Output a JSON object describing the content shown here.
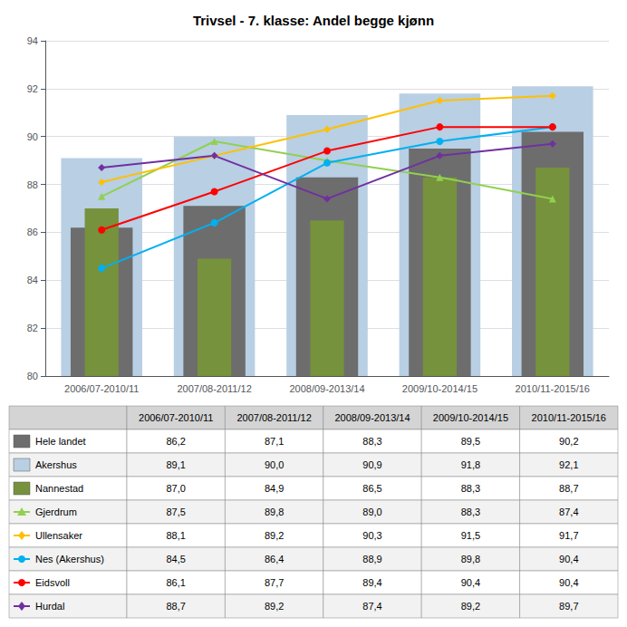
{
  "chart_data": {
    "type": "bar",
    "title": "Trivsel - 7. klasse: Andel begge kjønn",
    "categories": [
      "2006/07-2010/11",
      "2007/08-2011/12",
      "2008/09-2013/14",
      "2009/10-2014/15",
      "2010/11-2015/16"
    ],
    "ylim": [
      80,
      94
    ],
    "yticks": [
      80,
      82,
      84,
      86,
      88,
      90,
      92,
      94
    ],
    "grid": true,
    "series": [
      {
        "name": "Hele landet",
        "type": "bar",
        "color": "#6d6d6d",
        "values": [
          86.2,
          87.1,
          88.3,
          89.5,
          90.2
        ],
        "value_labels": [
          "86,2",
          "87,1",
          "88,3",
          "89,5",
          "90,2"
        ]
      },
      {
        "name": "Akershus",
        "type": "bar",
        "color": "#b8cfe4",
        "values": [
          89.1,
          90.0,
          90.9,
          91.8,
          92.1
        ],
        "value_labels": [
          "89,1",
          "90,0",
          "90,9",
          "91,8",
          "92,1"
        ]
      },
      {
        "name": "Nannestad",
        "type": "bar",
        "color": "#76923c",
        "values": [
          87.0,
          84.9,
          86.5,
          88.3,
          88.7
        ],
        "value_labels": [
          "87,0",
          "84,9",
          "86,5",
          "88,3",
          "88,7"
        ]
      },
      {
        "name": "Gjerdrum",
        "type": "line",
        "color": "#92d050",
        "marker": "triangle",
        "values": [
          87.5,
          89.8,
          89.0,
          88.3,
          87.4
        ],
        "value_labels": [
          "87,5",
          "89,8",
          "89,0",
          "88,3",
          "87,4"
        ]
      },
      {
        "name": "Ullensaker",
        "type": "line",
        "color": "#ffc000",
        "marker": "diamond",
        "values": [
          88.1,
          89.2,
          90.3,
          91.5,
          91.7
        ],
        "value_labels": [
          "88,1",
          "89,2",
          "90,3",
          "91,5",
          "91,7"
        ]
      },
      {
        "name": "Nes (Akershus)",
        "type": "line",
        "color": "#00b0f0",
        "marker": "circle",
        "values": [
          84.5,
          86.4,
          88.9,
          89.8,
          90.4
        ],
        "value_labels": [
          "84,5",
          "86,4",
          "88,9",
          "89,8",
          "90,4"
        ]
      },
      {
        "name": "Eidsvoll",
        "type": "line",
        "color": "#ff0000",
        "marker": "circle",
        "values": [
          86.1,
          87.7,
          89.4,
          90.4,
          90.4
        ],
        "value_labels": [
          "86,1",
          "87,7",
          "89,4",
          "90,4",
          "90,4"
        ]
      },
      {
        "name": "Hurdal",
        "type": "line",
        "color": "#7030a0",
        "marker": "diamond",
        "values": [
          88.7,
          89.2,
          87.4,
          89.2,
          89.7
        ],
        "value_labels": [
          "88,7",
          "89,2",
          "87,4",
          "89,2",
          "89,7"
        ]
      }
    ]
  }
}
